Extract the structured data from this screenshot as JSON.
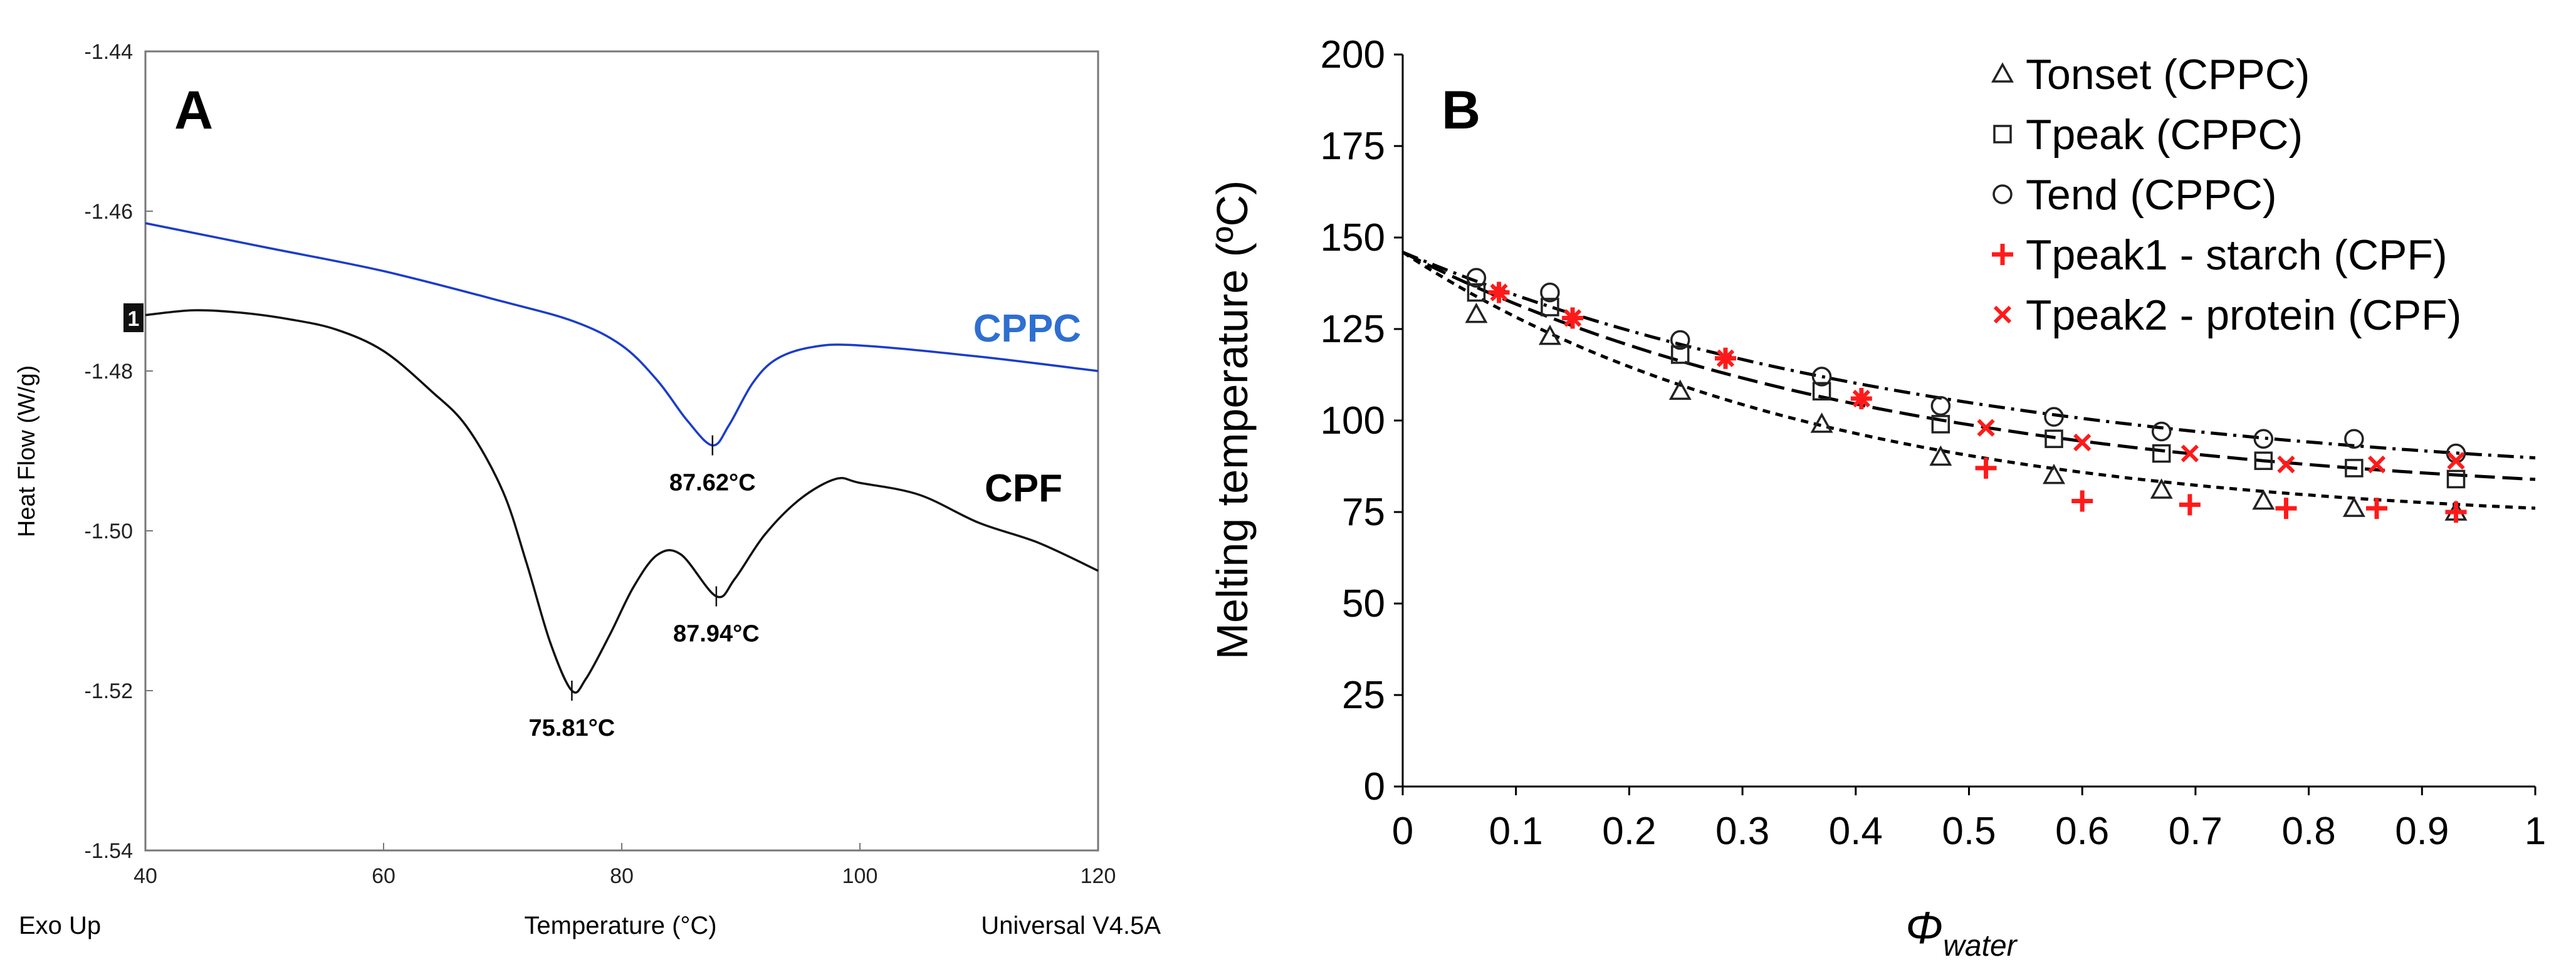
{
  "chart_data": [
    {
      "panel": "A",
      "type": "line",
      "title": "A",
      "xlabel": "Temperature (°C)",
      "ylabel": "Heat Flow (W/g)",
      "xlim": [
        40,
        120
      ],
      "ylim": [
        -1.54,
        -1.44
      ],
      "xticks": [
        "40",
        "60",
        "80",
        "100",
        "120"
      ],
      "yticks": [
        "-1.44",
        "-1.46",
        "-1.48",
        "-1.50",
        "-1.52",
        "-1.54"
      ],
      "footer_left": "Exo Up",
      "footer_right": "Universal V4.5A",
      "marker_label": "1",
      "series": [
        {
          "name": "CPPC",
          "color": "#1a3ccc",
          "label_color": "#2e6fd0",
          "points": [
            [
              40,
              -1.4615
            ],
            [
              50,
              -1.4645
            ],
            [
              60,
              -1.4675
            ],
            [
              70,
              -1.4713
            ],
            [
              76,
              -1.4738
            ],
            [
              80,
              -1.4768
            ],
            [
              83,
              -1.4812
            ],
            [
              85.5,
              -1.4862
            ],
            [
              87.62,
              -1.4893
            ],
            [
              89,
              -1.4868
            ],
            [
              91,
              -1.4815
            ],
            [
              93,
              -1.4785
            ],
            [
              96,
              -1.477
            ],
            [
              100,
              -1.4768
            ],
            [
              110,
              -1.4782
            ],
            [
              120,
              -1.48
            ]
          ]
        },
        {
          "name": "CPF",
          "color": "#111111",
          "label_color": "#000000",
          "points": [
            [
              40,
              -1.473
            ],
            [
              44,
              -1.4724
            ],
            [
              48,
              -1.4727
            ],
            [
              52,
              -1.4735
            ],
            [
              56,
              -1.4748
            ],
            [
              60,
              -1.4775
            ],
            [
              64,
              -1.4825
            ],
            [
              67,
              -1.487
            ],
            [
              70,
              -1.495
            ],
            [
              72,
              -1.504
            ],
            [
              74,
              -1.514
            ],
            [
              75.81,
              -1.52
            ],
            [
              77,
              -1.5185
            ],
            [
              79,
              -1.513
            ],
            [
              81,
              -1.507
            ],
            [
              83,
              -1.503
            ],
            [
              85,
              -1.503
            ],
            [
              87.94,
              -1.5082
            ],
            [
              89.5,
              -1.506
            ],
            [
              92,
              -1.5005
            ],
            [
              95,
              -1.496
            ],
            [
              98,
              -1.4935
            ],
            [
              100,
              -1.494
            ],
            [
              105,
              -1.4955
            ],
            [
              110,
              -1.499
            ],
            [
              115,
              -1.5015
            ],
            [
              120,
              -1.505
            ]
          ]
        }
      ],
      "annotations": [
        {
          "text": "87.62°C",
          "x": 87.62,
          "y": -1.4893,
          "series": "CPPC"
        },
        {
          "text": "87.94°C",
          "x": 87.94,
          "y": -1.5082,
          "series": "CPF"
        },
        {
          "text": "75.81°C",
          "x": 75.81,
          "y": -1.52,
          "series": "CPF"
        }
      ]
    },
    {
      "panel": "B",
      "type": "scatter",
      "title": "B",
      "xlabel_symbol": "Φ",
      "xlabel_subscript": "water",
      "ylabel": "Melting temperature (ºC)",
      "xlim": [
        0,
        1
      ],
      "ylim": [
        0,
        200
      ],
      "xticks": [
        "0",
        "0.1",
        "0.2",
        "0.3",
        "0.4",
        "0.5",
        "0.6",
        "0.7",
        "0.8",
        "0.9",
        "1"
      ],
      "yticks": [
        "0",
        "25",
        "50",
        "75",
        "100",
        "125",
        "150",
        "175",
        "200"
      ],
      "series": [
        {
          "name": "Tonset (CPPC)",
          "marker": "triangle",
          "color": "#222222",
          "x": [
            0.065,
            0.13,
            0.245,
            0.37,
            0.475,
            0.575,
            0.67,
            0.76,
            0.84,
            0.93
          ],
          "y": [
            129,
            123,
            108,
            99,
            90,
            85,
            81,
            78,
            76,
            75
          ]
        },
        {
          "name": "Tpeak (CPPC)",
          "marker": "square",
          "color": "#222222",
          "x": [
            0.065,
            0.13,
            0.245,
            0.37,
            0.475,
            0.575,
            0.67,
            0.76,
            0.84,
            0.93
          ],
          "y": [
            135,
            131,
            118,
            108,
            99,
            95,
            91,
            89,
            87,
            84
          ]
        },
        {
          "name": "Tend (CPPC)",
          "marker": "circle",
          "color": "#222222",
          "x": [
            0.065,
            0.13,
            0.245,
            0.37,
            0.475,
            0.575,
            0.67,
            0.76,
            0.84,
            0.93
          ],
          "y": [
            139,
            135,
            122,
            112,
            104,
            101,
            97,
            95,
            95,
            91
          ]
        },
        {
          "name": "Tpeak1 - starch (CPF)",
          "marker": "plus",
          "color": "#ff1a1a",
          "x": [
            0.085,
            0.15,
            0.285,
            0.405,
            0.515,
            0.6,
            0.695,
            0.78,
            0.86,
            0.93
          ],
          "y": [
            135,
            128,
            117,
            106,
            87,
            78,
            77,
            76,
            76,
            75
          ]
        },
        {
          "name": "Tpeak2 - protein (CPF)",
          "marker": "x",
          "color": "#ff1a1a",
          "x": [
            0.085,
            0.15,
            0.285,
            0.405,
            0.515,
            0.6,
            0.695,
            0.78,
            0.86,
            0.93
          ],
          "y": [
            135,
            128,
            117,
            106,
            98,
            94,
            91,
            88,
            88,
            89
          ]
        }
      ],
      "fits": [
        {
          "name": "Tend fit",
          "style": "dashdot",
          "T0": 146,
          "Tinf": 81,
          "k": 2.0
        },
        {
          "name": "Tpeak fit",
          "style": "longdash",
          "T0": 146,
          "Tinf": 77,
          "k": 2.3
        },
        {
          "name": "Tonset fit",
          "style": "shortdash",
          "T0": 146,
          "Tinf": 71,
          "k": 2.7
        }
      ]
    }
  ]
}
